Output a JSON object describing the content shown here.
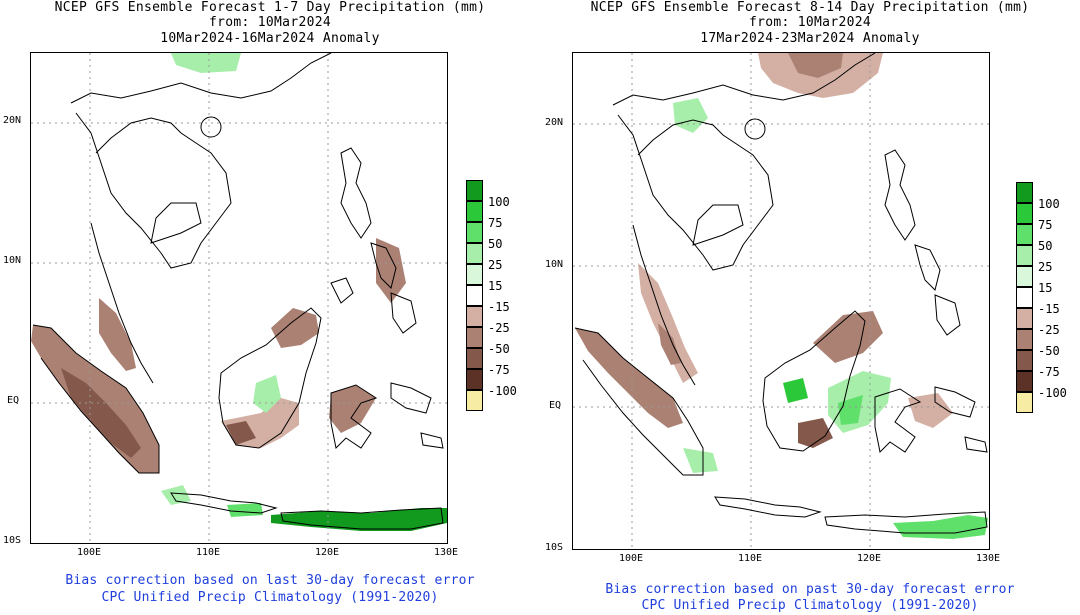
{
  "chart_data": [
    {
      "type": "heatmap",
      "title": "NCEP GFS Ensemble Forecast 1-7 Day Precipitation (mm)",
      "subtitle": "from: 10Mar2024",
      "period": "10Mar2024-16Mar2024 Anomaly",
      "xlim": [
        95,
        130
      ],
      "ylim": [
        -10,
        25
      ],
      "xticks": [
        "100E",
        "110E",
        "120E",
        "130E"
      ],
      "yticks": [
        "20N",
        "10N",
        "EQ",
        "10S"
      ],
      "legend_levels": [
        "100",
        "75",
        "50",
        "25",
        "15",
        "-15",
        "-25",
        "-50",
        "-75",
        "-100"
      ],
      "footer": [
        "Bias correction based on last 30-day forecast error",
        "CPC Unified Precip Climatology (1991-2020)"
      ]
    },
    {
      "type": "heatmap",
      "title": "NCEP GFS Ensemble Forecast 8-14 Day Precipitation (mm)",
      "subtitle": "from: 10Mar2024",
      "period": "17Mar2024-23Mar2024 Anomaly",
      "xlim": [
        95,
        130
      ],
      "ylim": [
        -10,
        25
      ],
      "xticks": [
        "100E",
        "110E",
        "120E",
        "130E"
      ],
      "yticks": [
        "20N",
        "10N",
        "EQ",
        "10S"
      ],
      "legend_levels": [
        "100",
        "75",
        "50",
        "25",
        "15",
        "-15",
        "-25",
        "-50",
        "-75",
        "-100"
      ],
      "footer": [
        "Bias correction based on past 30-day forecast error",
        "CPC Unified Precip Climatology (1991-2020)"
      ]
    }
  ],
  "legend_colors": [
    "#119a1d",
    "#2bc93a",
    "#5fe06a",
    "#a7eeaa",
    "#d9f7da",
    "#ffffff",
    "#d4b0a4",
    "#ab8174",
    "#84594c",
    "#5c3126",
    "#f6eca4"
  ]
}
